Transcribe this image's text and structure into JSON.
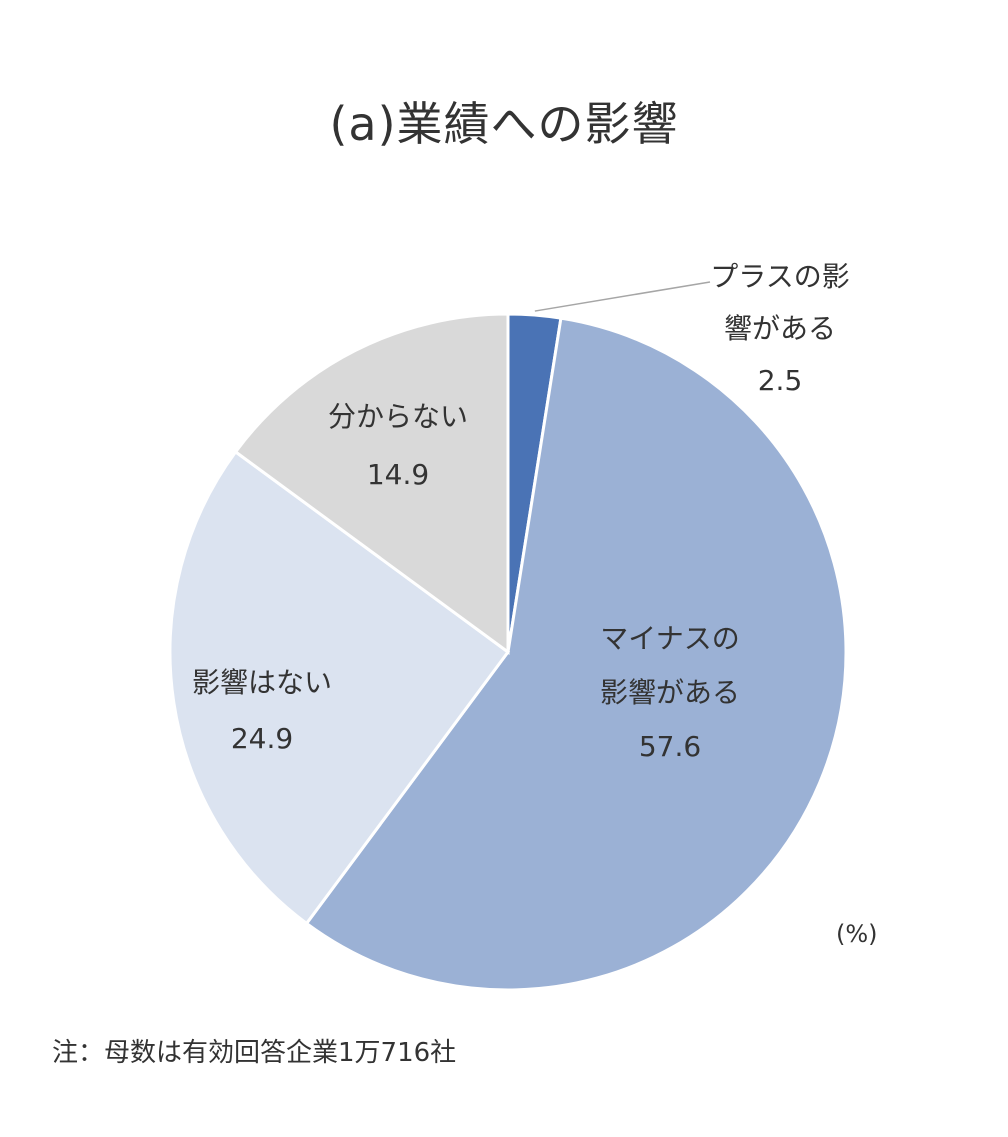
{
  "chart_data": {
    "type": "pie",
    "title": "(a)業績への影響",
    "unit": "(%)",
    "note": "注：母数は有効回答企業1万716社",
    "slices": [
      {
        "label_lines": [
          "プラスの影",
          "響がある"
        ],
        "value": 2.5,
        "value_label": "2.5",
        "color": "#4a73b5"
      },
      {
        "label_lines": [
          "マイナスの",
          "影響がある"
        ],
        "value": 57.6,
        "value_label": "57.6",
        "color": "#9bb1d5"
      },
      {
        "label_lines": [
          "影響はない"
        ],
        "value": 24.9,
        "value_label": "24.9",
        "color": "#dbe3f0"
      },
      {
        "label_lines": [
          "分からない"
        ],
        "value": 14.9,
        "value_label": "14.9",
        "color": "#d9d9d9"
      }
    ]
  }
}
